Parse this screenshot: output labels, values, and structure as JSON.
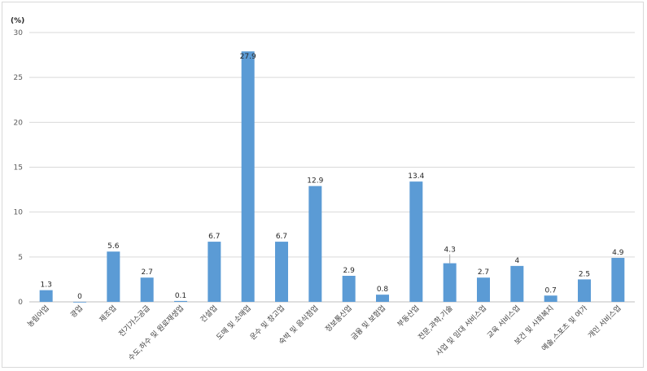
{
  "chart_data": {
    "type": "bar",
    "unit_label": "(%)",
    "ylim": [
      0,
      30
    ],
    "yticks": [
      0,
      5,
      10,
      15,
      20,
      25,
      30
    ],
    "grid": true,
    "bar_color": "#5b9bd5",
    "categories": [
      "농림어업",
      "광업",
      "제조업",
      "전기가스공급",
      "수도,하수 및 원료재생업",
      "건설업",
      "도매 및 소매업",
      "운수 및 창고업",
      "숙박 및 음식점업",
      "정보통신업",
      "금융 및 보험업",
      "부동산업",
      "전문,과학,기술",
      "사업 및 임대 서비스업",
      "교육 서비스업",
      "보건 및 사회복지",
      "예술,스포츠 및 여가",
      "개인 서비스업"
    ],
    "values": [
      1.3,
      0,
      5.6,
      2.7,
      0.1,
      6.7,
      27.9,
      6.7,
      12.9,
      2.9,
      0.8,
      13.4,
      4.3,
      2.7,
      4,
      0.7,
      2.5,
      4.9
    ],
    "data_labels": [
      "1.3",
      "0",
      "5.6",
      "2.7",
      "0.1",
      "6.7",
      "27.9",
      "6.7",
      "12.9",
      "2.9",
      "0.8",
      "13.4",
      "4.3",
      "2.7",
      "4",
      "0.7",
      "2.5",
      "4.9"
    ]
  }
}
